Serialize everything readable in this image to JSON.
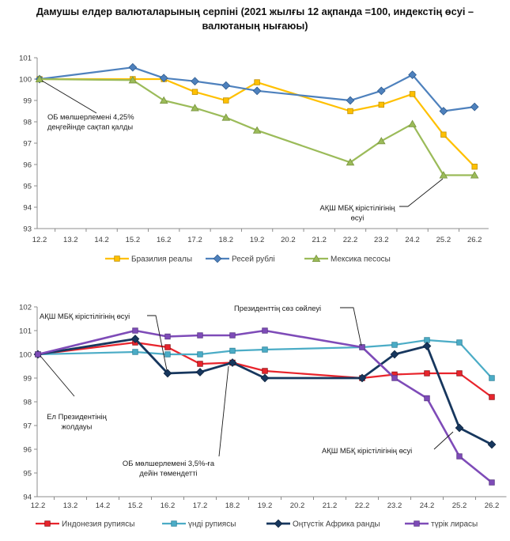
{
  "title": {
    "line1": "Дамушы елдер валюталарының серпіні (2021 жылғы 12 ақпанда =100, индекстің өсуі –",
    "line2": "валютаның нығаюы)"
  },
  "chart_data": [
    {
      "type": "line",
      "title": "Дамушы елдер валюталарының серпіні (2021 жылғы 12 ақпанда =100)",
      "categories": [
        "12.2",
        "13.2",
        "14.2",
        "15.2",
        "16.2",
        "17.2",
        "18.2",
        "19.2",
        "20.2",
        "21.2",
        "22.2",
        "23.2",
        "24.2",
        "25.2",
        "26.2"
      ],
      "ylim": [
        93,
        101
      ],
      "yticks": [
        93,
        94,
        95,
        96,
        97,
        98,
        99,
        100,
        101
      ],
      "grid": false,
      "legend_position": "bottom",
      "series": [
        {
          "id": "brazilian-real",
          "name": "Бразилия реалы",
          "color": "#FFC000",
          "edge": "#BF9000",
          "marker": "square",
          "values": [
            100,
            null,
            null,
            100.0,
            100.0,
            99.4,
            99.0,
            99.85,
            null,
            null,
            98.5,
            98.8,
            99.3,
            97.4,
            95.9
          ]
        },
        {
          "id": "russian-ruble",
          "name": "Ресей рублі",
          "color": "#4E81BD",
          "edge": "#2E5B8F",
          "marker": "diamond",
          "values": [
            100,
            null,
            null,
            100.55,
            100.05,
            99.9,
            99.7,
            99.45,
            null,
            null,
            99.0,
            99.45,
            100.2,
            98.5,
            98.7
          ]
        },
        {
          "id": "mexican-peso",
          "name": "Мексика песосы",
          "color": "#9BBB59",
          "edge": "#77933C",
          "marker": "triangle",
          "values": [
            100,
            null,
            null,
            99.95,
            99.0,
            98.65,
            98.2,
            97.6,
            null,
            null,
            96.1,
            97.1,
            97.9,
            95.5,
            95.5
          ]
        }
      ],
      "annotations": [
        {
          "id": "cb-rate-kept-425",
          "lines": [
            "ОБ мөлшерлемені 4,25%",
            "деңгейінде сақтап қалды"
          ]
        },
        {
          "id": "us-treasury-yield-rise",
          "lines": [
            "АҚШ МБҚ кірістілігінің",
            "өсуі"
          ]
        }
      ]
    },
    {
      "type": "line",
      "title": "Дамушы елдер валюталарының серпіні (жалғасы)",
      "categories": [
        "12.2",
        "13.2",
        "14.2",
        "15.2",
        "16.2",
        "17.2",
        "18.2",
        "19.2",
        "20.2",
        "21.2",
        "22.2",
        "23.2",
        "24.2",
        "25.2",
        "26.2"
      ],
      "ylim": [
        94,
        102
      ],
      "yticks": [
        94,
        95,
        96,
        97,
        98,
        99,
        100,
        101,
        102
      ],
      "grid": false,
      "legend_position": "bottom",
      "series": [
        {
          "id": "indonesian-rupiah",
          "name": "Индонезия рупиясы",
          "color": "#E8242C",
          "edge": "#8F1015",
          "marker": "square",
          "values": [
            100,
            null,
            null,
            100.5,
            100.3,
            99.6,
            99.65,
            99.3,
            null,
            null,
            99.0,
            99.15,
            99.2,
            99.2,
            98.2
          ]
        },
        {
          "id": "indian-rupee",
          "name": "үнді рупиясы",
          "color": "#4BACC6",
          "edge": "#31849B",
          "marker": "square",
          "values": [
            100,
            null,
            null,
            100.1,
            100.0,
            100.0,
            100.15,
            100.2,
            null,
            null,
            100.3,
            100.4,
            100.6,
            100.5,
            99.0
          ]
        },
        {
          "id": "south-african-rand",
          "name": "Оңтүстік Африка ранды",
          "color": "#17375E",
          "edge": "#0F243E",
          "marker": "diamond",
          "values": [
            100,
            null,
            null,
            100.65,
            99.2,
            99.25,
            99.65,
            99.0,
            null,
            null,
            99.0,
            100.0,
            100.35,
            96.9,
            96.2
          ]
        },
        {
          "id": "turkish-lira",
          "name": "түрік лирасы",
          "color": "#7E4BB8",
          "edge": "#5C3A87",
          "marker": "square",
          "values": [
            100,
            null,
            null,
            101.0,
            100.75,
            100.8,
            100.8,
            101.0,
            null,
            null,
            100.3,
            99.0,
            98.15,
            95.7,
            94.6
          ]
        }
      ],
      "annotations": [
        {
          "id": "us-treasury-yield-rise-1",
          "lines": [
            "АҚШ МБҚ кірістілігінің өсуі"
          ]
        },
        {
          "id": "president-address",
          "lines": [
            "Ел Президентінің",
            "жолдауы"
          ]
        },
        {
          "id": "cb-rate-cut-35",
          "lines": [
            "ОБ мөлшерлемені 3,5%-ға",
            "дейін төмендетті"
          ]
        },
        {
          "id": "president-speech",
          "lines": [
            "Президенттің сөз сөйлеуі"
          ]
        },
        {
          "id": "us-treasury-yield-rise-2",
          "lines": [
            "АҚШ МБҚ кірістілігінің өсуі"
          ]
        }
      ]
    }
  ]
}
